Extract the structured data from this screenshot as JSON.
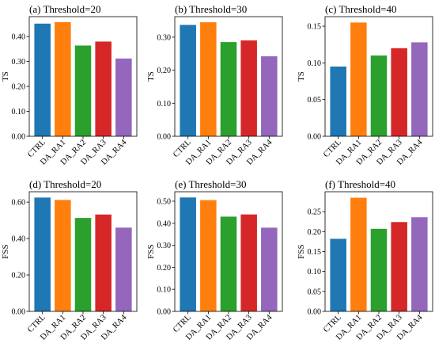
{
  "colors": [
    "#1f77b4",
    "#ff7f0e",
    "#2ca02c",
    "#d62728",
    "#9467bd"
  ],
  "chart_data": [
    {
      "type": "bar",
      "title": "(a) Threshold=20",
      "ylabel": "TS",
      "categories": [
        "CTRL",
        "DA_RA1",
        "DA_RA2",
        "DA_RA3",
        "DA_RA4"
      ],
      "values": [
        0.452,
        0.458,
        0.364,
        0.38,
        0.312
      ],
      "ylim": [
        0,
        0.48
      ],
      "yticks": [
        "0.00",
        "0.10",
        "0.20",
        "0.30",
        "0.40"
      ]
    },
    {
      "type": "bar",
      "title": "(b) Threshold=30",
      "ylabel": "TS",
      "categories": [
        "CTRL",
        "DA_RA1",
        "DA_RA2",
        "DA_RA3",
        "DA_RA4"
      ],
      "values": [
        0.337,
        0.345,
        0.285,
        0.29,
        0.242
      ],
      "ylim": [
        0,
        0.362
      ],
      "yticks": [
        "0.00",
        "0.10",
        "0.20",
        "0.30"
      ]
    },
    {
      "type": "bar",
      "title": "(c) Threshold=40",
      "ylabel": "TS",
      "categories": [
        "CTRL",
        "DA_RA1",
        "DA_RA2",
        "DA_RA3",
        "DA_RA4"
      ],
      "values": [
        0.095,
        0.155,
        0.11,
        0.12,
        0.128
      ],
      "ylim": [
        0,
        0.163
      ],
      "yticks": [
        "0.00",
        "0.05",
        "0.10",
        "0.15"
      ]
    },
    {
      "type": "bar",
      "title": "(d) Threshold=20",
      "ylabel": "FSS",
      "categories": [
        "CTRL",
        "DA_RA1",
        "DA_RA2",
        "DA_RA3",
        "DA_RA4"
      ],
      "values": [
        0.625,
        0.612,
        0.513,
        0.532,
        0.46
      ],
      "ylim": [
        0,
        0.657
      ],
      "yticks": [
        "0.00",
        "0.20",
        "0.40",
        "0.60"
      ]
    },
    {
      "type": "bar",
      "title": "(e) Threshold=30",
      "ylabel": "FSS",
      "categories": [
        "CTRL",
        "DA_RA1",
        "DA_RA2",
        "DA_RA3",
        "DA_RA4"
      ],
      "values": [
        0.517,
        0.505,
        0.43,
        0.44,
        0.38
      ],
      "ylim": [
        0,
        0.543
      ],
      "yticks": [
        "0.00",
        "0.10",
        "0.20",
        "0.30",
        "0.40",
        "0.50"
      ]
    },
    {
      "type": "bar",
      "title": "(f) Threshold=40",
      "ylabel": "FSS",
      "categories": [
        "CTRL",
        "DA_RA1",
        "DA_RA2",
        "DA_RA3",
        "DA_RA4"
      ],
      "values": [
        0.182,
        0.285,
        0.207,
        0.224,
        0.236
      ],
      "ylim": [
        0,
        0.3
      ],
      "yticks": [
        "0.00",
        "0.05",
        "0.10",
        "0.15",
        "0.20",
        "0.25"
      ]
    }
  ]
}
